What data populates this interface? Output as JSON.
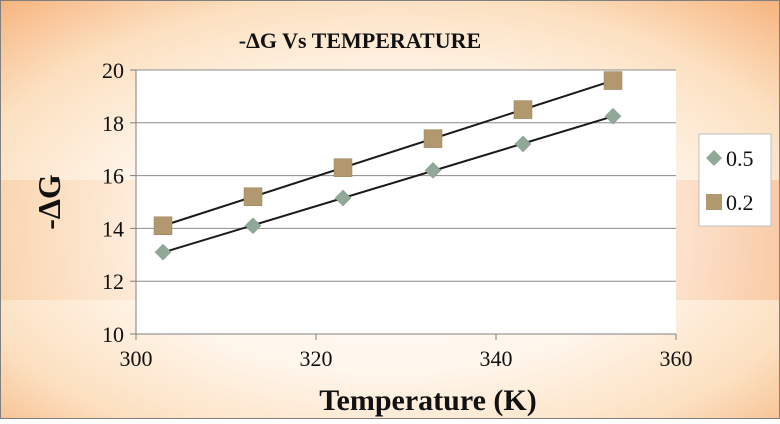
{
  "chart_data": {
    "type": "scatter",
    "title": "-ΔG  Vs TEMPERATURE",
    "xlabel": "Temperature (K)",
    "ylabel": "-ΔG",
    "xlim": [
      300,
      360
    ],
    "ylim": [
      10,
      20
    ],
    "x_ticks": [
      300,
      320,
      340,
      360
    ],
    "y_ticks": [
      10,
      12,
      14,
      16,
      18,
      20
    ],
    "grid": "horizontal",
    "legend_position": "right",
    "trendlines": true,
    "series": [
      {
        "name": "0.5",
        "marker": "diamond",
        "color": "#8fa898",
        "x": [
          303,
          313,
          323,
          333,
          343,
          353
        ],
        "y": [
          13.1,
          14.1,
          15.15,
          16.2,
          17.2,
          18.25
        ]
      },
      {
        "name": "0.2",
        "marker": "square",
        "color": "#b2986e",
        "x": [
          303,
          313,
          323,
          333,
          343,
          353
        ],
        "y": [
          14.1,
          15.2,
          16.3,
          17.4,
          18.5,
          19.6
        ]
      }
    ]
  }
}
